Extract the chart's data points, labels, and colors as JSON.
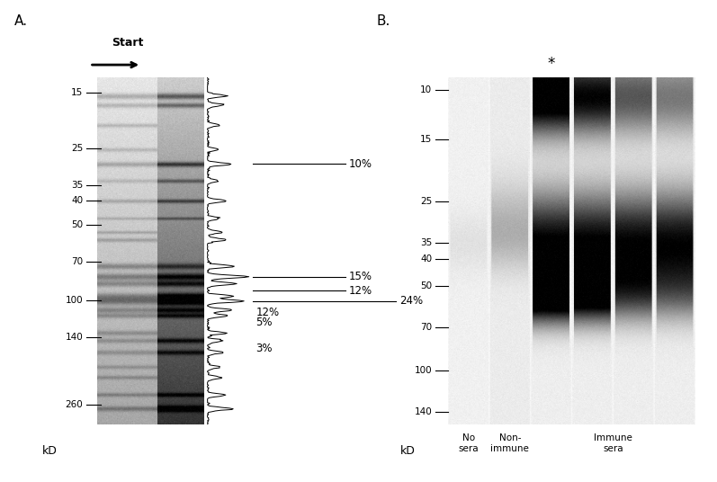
{
  "panel_A_label": "A.",
  "panel_B_label": "B.",
  "panel_A_kD_label": "kD",
  "panel_B_kD_label": "kD",
  "start_label": "Start",
  "panel_A_markers": [
    260,
    140,
    100,
    70,
    50,
    40,
    35,
    25,
    15
  ],
  "panel_B_markers": [
    140,
    100,
    70,
    50,
    40,
    35,
    25,
    15,
    10
  ],
  "panel_B_group_labels": [
    "No\nsera",
    "Non-\nimmune",
    "Immune\nsera"
  ],
  "star_label": "*",
  "bg_color": "#ffffff",
  "panel_A_lo": 13,
  "panel_A_hi": 310,
  "panel_B_lo": 9,
  "panel_B_hi": 155
}
